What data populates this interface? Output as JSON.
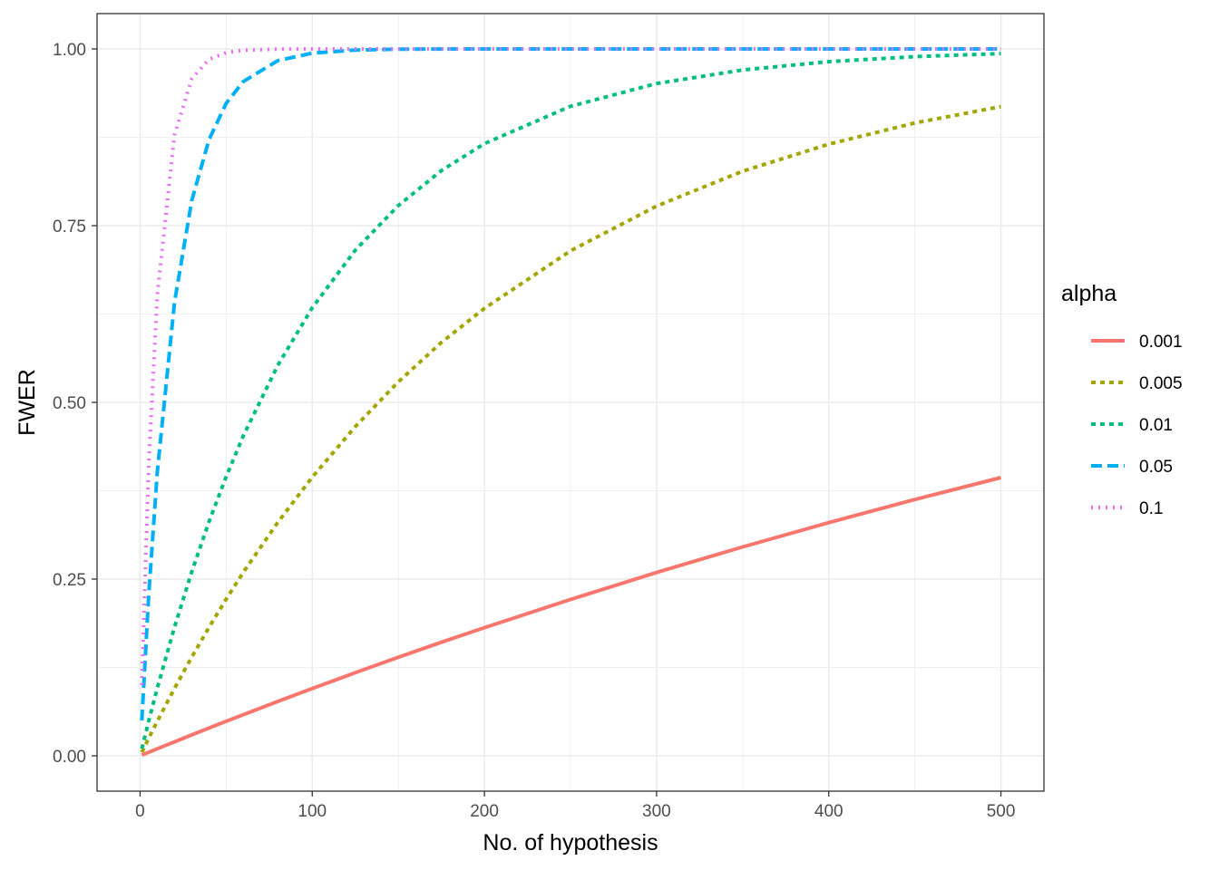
{
  "chart_data": {
    "type": "line",
    "xlabel": "No. of hypothesis",
    "ylabel": "FWER",
    "xlim": [
      -25,
      525
    ],
    "ylim": [
      -0.05,
      1.05
    ],
    "x_ticks": [
      0,
      100,
      200,
      300,
      400,
      500
    ],
    "x_tick_labels": [
      "0",
      "100",
      "200",
      "300",
      "400",
      "500"
    ],
    "y_ticks": [
      0,
      0.25,
      0.5,
      0.75,
      1.0
    ],
    "y_tick_labels": [
      "0.00",
      "0.25",
      "0.50",
      "0.75",
      "1.00"
    ],
    "grid": true,
    "legend": {
      "title": "alpha",
      "position": "right"
    },
    "x": [
      1,
      5,
      10,
      20,
      30,
      40,
      50,
      60,
      80,
      100,
      125,
      150,
      175,
      200,
      250,
      300,
      350,
      400,
      450,
      500
    ],
    "series": [
      {
        "name": "0.001",
        "color": "#F8766D",
        "dash": "solid",
        "values": [
          0.001,
          0.005,
          0.01,
          0.0198,
          0.0296,
          0.0392,
          0.0488,
          0.0582,
          0.0769,
          0.0952,
          0.1176,
          0.1393,
          0.1606,
          0.1813,
          0.2212,
          0.2593,
          0.2955,
          0.3299,
          0.3626,
          0.3936
        ]
      },
      {
        "name": "0.005",
        "color": "#A3A500",
        "dash": "dashed",
        "values": [
          0.005,
          0.0248,
          0.0489,
          0.0954,
          0.1396,
          0.1817,
          0.2217,
          0.2597,
          0.3302,
          0.3942,
          0.4657,
          0.5291,
          0.5847,
          0.633,
          0.7144,
          0.7777,
          0.827,
          0.8653,
          0.8952,
          0.9184
        ]
      },
      {
        "name": "0.01",
        "color": "#00BF7D",
        "dash": "dashed",
        "values": [
          0.01,
          0.049,
          0.0956,
          0.1821,
          0.2603,
          0.331,
          0.395,
          0.4528,
          0.5525,
          0.634,
          0.7153,
          0.7785,
          0.8278,
          0.866,
          0.9189,
          0.951,
          0.9703,
          0.982,
          0.9891,
          0.9934
        ]
      },
      {
        "name": "0.05",
        "color": "#00B0F6",
        "dash": "longdash",
        "values": [
          0.05,
          0.2262,
          0.4013,
          0.6415,
          0.7854,
          0.8715,
          0.9231,
          0.954,
          0.9835,
          0.9941,
          0.9984,
          0.9996,
          0.9999,
          1.0,
          1.0,
          1.0,
          1.0,
          1.0,
          1.0,
          1.0
        ]
      },
      {
        "name": "0.1",
        "color": "#E76BF3",
        "dash": "dotted",
        "values": [
          0.1,
          0.4095,
          0.6513,
          0.8784,
          0.9576,
          0.9852,
          0.9948,
          0.9982,
          0.9998,
          1.0,
          1.0,
          1.0,
          1.0,
          1.0,
          1.0,
          1.0,
          1.0,
          1.0,
          1.0,
          1.0
        ]
      }
    ]
  }
}
